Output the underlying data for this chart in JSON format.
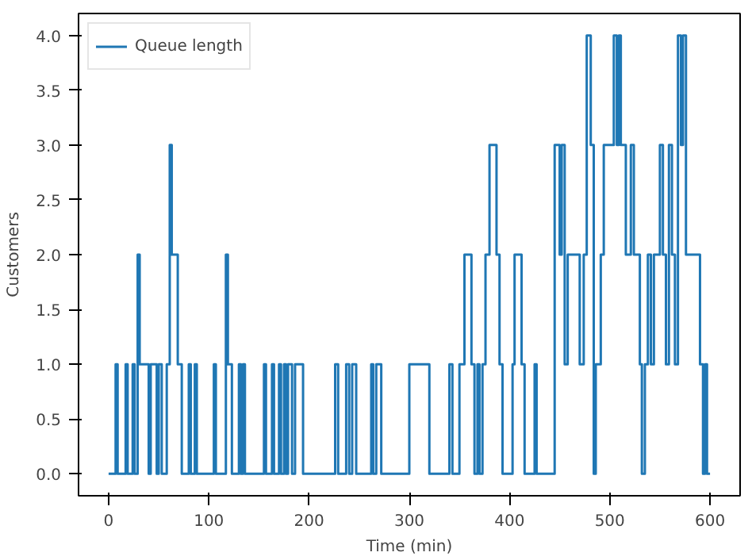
{
  "chart_data": {
    "type": "step",
    "xlabel": "Time (min)",
    "ylabel": "Customers",
    "legend": "top left",
    "grid": false,
    "xlim": [
      -30,
      630
    ],
    "ylim": [
      -0.2,
      4.2
    ],
    "xticks": [
      0,
      100,
      200,
      300,
      400,
      500,
      600
    ],
    "yticks": [
      {
        "value": 0,
        "label": "0.0"
      },
      {
        "value": 0.5,
        "label": "0.5"
      },
      {
        "value": 1,
        "label": "1.0"
      },
      {
        "value": 1.5,
        "label": "1.5"
      },
      {
        "value": 2,
        "label": "2.0"
      },
      {
        "value": 2.5,
        "label": "2.5"
      },
      {
        "value": 3,
        "label": "3.0"
      },
      {
        "value": 3.5,
        "label": "3.5"
      },
      {
        "value": 4,
        "label": "4.0"
      }
    ],
    "series": [
      {
        "name": "Queue length",
        "color": "#1f77b4",
        "x": [
          0,
          7,
          9,
          17,
          19,
          24,
          26,
          29,
          31,
          40,
          42,
          48,
          50,
          53,
          58,
          61,
          63,
          69,
          73,
          80,
          82,
          86,
          88,
          105,
          107,
          117,
          119,
          123,
          130,
          132,
          134,
          136,
          155,
          157,
          163,
          165,
          170,
          172,
          175,
          177,
          179,
          183,
          186,
          194,
          226,
          229,
          237,
          240,
          243,
          247,
          262,
          264,
          267,
          272,
          300,
          320,
          340,
          343,
          350,
          355,
          362,
          365,
          368,
          370,
          373,
          376,
          380,
          387,
          390,
          393,
          403,
          405,
          412,
          415,
          425,
          427,
          445,
          450,
          452,
          455,
          458,
          470,
          474,
          477,
          481,
          484,
          486,
          491,
          494,
          504,
          507,
          509,
          511,
          516,
          521,
          524,
          530,
          532,
          535,
          538,
          541,
          544,
          550,
          553,
          556,
          559,
          562,
          565,
          568,
          571,
          573,
          576,
          590,
          593,
          595,
          597,
          600
        ],
        "values": [
          0,
          1,
          0,
          1,
          0,
          1,
          0,
          2,
          1,
          0,
          1,
          0,
          1,
          0,
          1,
          3,
          2,
          1,
          0,
          1,
          0,
          1,
          0,
          1,
          0,
          2,
          1,
          0,
          1,
          0,
          1,
          0,
          1,
          0,
          1,
          0,
          1,
          0,
          1,
          0,
          1,
          0,
          1,
          0,
          1,
          0,
          1,
          0,
          1,
          0,
          1,
          0,
          1,
          0,
          1,
          0,
          1,
          0,
          1,
          2,
          1,
          0,
          1,
          0,
          1,
          2,
          3,
          2,
          1,
          0,
          1,
          2,
          1,
          0,
          1,
          0,
          3,
          2,
          3,
          1,
          2,
          1,
          2,
          4,
          3,
          0,
          1,
          2,
          3,
          4,
          3,
          4,
          3,
          2,
          3,
          2,
          1,
          0,
          1,
          2,
          1,
          2,
          3,
          2,
          1,
          3,
          2,
          1,
          4,
          3,
          4,
          2,
          1,
          0,
          1,
          0,
          0
        ]
      }
    ]
  }
}
